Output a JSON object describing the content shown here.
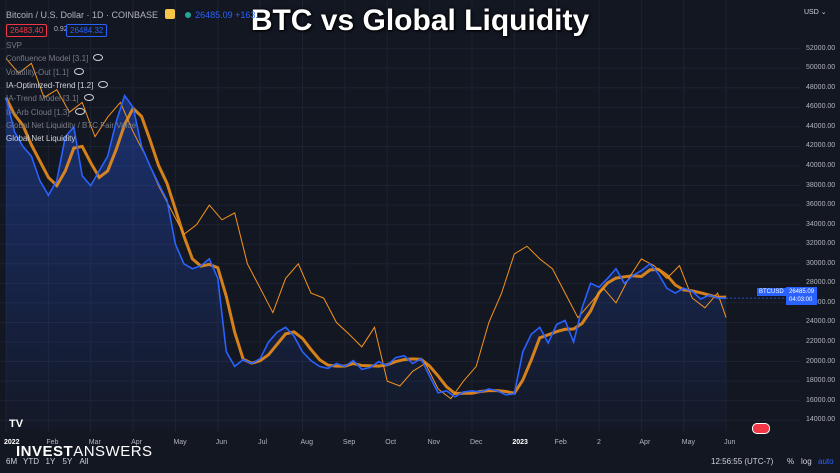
{
  "title": "BTC vs Global Liquidity",
  "symbol": {
    "name": "Bitcoin / U.S. Dollar · 1D · COINBASE",
    "live_price": "26485.09",
    "live_change": "+163.",
    "sell": "26483.40",
    "spread": "0.92",
    "buy": "26484.32"
  },
  "indicators": [
    {
      "label": "SVP",
      "bright": false
    },
    {
      "label": "Confluence Model [3.1]",
      "bright": false
    },
    {
      "label": "Volatility-Out [1.1]",
      "bright": false
    },
    {
      "label": "IA-Optimized-Trend [1.2]",
      "bright": true
    },
    {
      "label": "IA-Trend Model [3.1]",
      "bright": false
    },
    {
      "label": "IA-Arb Cloud [1.3]",
      "bright": false
    },
    {
      "label": "Global Net Liquidity / BTC Fair Value",
      "bright": false
    },
    {
      "label": "Global Net Liquidity",
      "bright": true
    }
  ],
  "currency": "USD",
  "price_tag": {
    "symbol": "BTCUSD",
    "price": "26485.09",
    "countdown": "04:03:00"
  },
  "branding": {
    "logo_bold": "INVEST",
    "logo_light": "ANSWERS",
    "tv": "TV"
  },
  "bottom_bar": {
    "ranges": [
      "6M",
      "YTD",
      "1Y",
      "5Y",
      "All"
    ],
    "time": "12:56:55 (UTC-7)",
    "pct": "%",
    "log": "log",
    "auto": "auto"
  },
  "chart_data": {
    "type": "line",
    "title": "BTC vs Global Liquidity",
    "xlabel": "",
    "ylabel": "",
    "x_ticks": [
      {
        "label": "2022",
        "m": 0,
        "bold": true
      },
      {
        "label": "Feb",
        "m": 1
      },
      {
        "label": "Mar",
        "m": 2
      },
      {
        "label": "Apr",
        "m": 3
      },
      {
        "label": "May",
        "m": 4
      },
      {
        "label": "Jun",
        "m": 5
      },
      {
        "label": "Jul",
        "m": 6
      },
      {
        "label": "Aug",
        "m": 7
      },
      {
        "label": "Sep",
        "m": 8
      },
      {
        "label": "Oct",
        "m": 9
      },
      {
        "label": "Nov",
        "m": 10
      },
      {
        "label": "Dec",
        "m": 11
      },
      {
        "label": "2023",
        "m": 12,
        "bold": true
      },
      {
        "label": "Feb",
        "m": 13
      },
      {
        "label": "2",
        "m": 14
      },
      {
        "label": "Apr",
        "m": 15
      },
      {
        "label": "May",
        "m": 16
      },
      {
        "label": "Jun",
        "m": 17
      }
    ],
    "y_ticks": [
      14000,
      16000,
      18000,
      20000,
      22000,
      24000,
      26000,
      28000,
      30000,
      32000,
      34000,
      36000,
      38000,
      40000,
      42000,
      44000,
      46000,
      48000,
      50000,
      52000
    ],
    "y_tick_labels": [
      "14000.00",
      "16000.00",
      "18000.00",
      "20000.00",
      "22000.00",
      "24000.00",
      "26000.00",
      "28000.00",
      "30000.00",
      "32000.00",
      "34000.00",
      "36000.00",
      "38000.00",
      "40000.00",
      "42000.00",
      "44000.00",
      "46000.00",
      "48000.00",
      "50000.00",
      "52000.00"
    ],
    "ylim": [
      13000,
      53500
    ],
    "xlim": [
      0,
      17.8
    ],
    "series": [
      {
        "name": "Bitcoin / U.S. Dollar",
        "color": "#2962ff",
        "x": [
          0,
          0.2,
          0.4,
          0.6,
          0.8,
          1.0,
          1.2,
          1.4,
          1.6,
          1.8,
          2.0,
          2.2,
          2.4,
          2.6,
          2.8,
          3.0,
          3.2,
          3.4,
          3.6,
          3.8,
          4.0,
          4.2,
          4.4,
          4.6,
          4.8,
          5.0,
          5.2,
          5.4,
          5.6,
          5.8,
          6.0,
          6.2,
          6.4,
          6.6,
          6.8,
          7.0,
          7.2,
          7.4,
          7.6,
          7.8,
          8.0,
          8.2,
          8.4,
          8.6,
          8.8,
          9.0,
          9.2,
          9.4,
          9.6,
          9.8,
          10.0,
          10.2,
          10.4,
          10.6,
          10.8,
          11.0,
          11.2,
          11.4,
          11.6,
          11.8,
          12.0,
          12.2,
          12.4,
          12.6,
          12.8,
          13.0,
          13.2,
          13.4,
          13.6,
          13.8,
          14.0,
          14.2,
          14.4,
          14.6,
          14.8,
          15.0,
          15.2,
          15.4,
          15.6,
          15.8,
          16.0,
          16.2,
          16.4,
          16.6,
          16.8,
          17.0
        ],
        "values": [
          47000,
          43500,
          42000,
          41000,
          38500,
          37000,
          38500,
          43000,
          44000,
          39000,
          38000,
          39500,
          41000,
          44500,
          47200,
          46000,
          42000,
          40000,
          38200,
          36500,
          32000,
          30000,
          29500,
          29800,
          30500,
          28500,
          21000,
          19500,
          20200,
          19800,
          20300,
          22000,
          23000,
          23500,
          22600,
          21000,
          20100,
          19500,
          19300,
          19800,
          19500,
          20100,
          19200,
          19400,
          20000,
          19600,
          20400,
          20600,
          19800,
          20300,
          18500,
          16800,
          17000,
          16400,
          16900,
          17000,
          16900,
          17200,
          17000,
          16600,
          16700,
          21000,
          22800,
          23500,
          21900,
          23800,
          24200,
          22000,
          25500,
          28000,
          27600,
          28500,
          29500,
          28000,
          28800,
          29300,
          30000,
          29000,
          27500,
          27000,
          27500,
          27200,
          26400,
          26800,
          26500,
          26485
        ]
      },
      {
        "name": "Global Net Liquidity",
        "color": "#f7931a",
        "x": [
          0,
          0.3,
          0.6,
          0.9,
          1.2,
          1.5,
          1.8,
          2.1,
          2.4,
          2.7,
          3.0,
          3.3,
          3.6,
          3.9,
          4.2,
          4.5,
          4.8,
          5.1,
          5.4,
          5.7,
          6.0,
          6.3,
          6.6,
          6.9,
          7.2,
          7.5,
          7.8,
          8.1,
          8.4,
          8.7,
          9.0,
          9.3,
          9.6,
          9.9,
          10.2,
          10.5,
          10.8,
          11.1,
          11.4,
          11.7,
          12.0,
          12.3,
          12.6,
          12.9,
          13.2,
          13.5,
          13.8,
          14.1,
          14.4,
          14.7,
          15.0,
          15.3,
          15.6,
          15.9,
          16.2,
          16.5,
          16.8,
          17.0
        ],
        "values": [
          51000,
          49500,
          50500,
          47000,
          47800,
          45500,
          46500,
          43000,
          45000,
          46500,
          43500,
          41000,
          38000,
          35500,
          33000,
          34000,
          36000,
          34500,
          35200,
          30000,
          27500,
          25000,
          28500,
          30000,
          27000,
          26500,
          24000,
          22800,
          21500,
          23500,
          18000,
          17500,
          19000,
          19800,
          17200,
          16200,
          18000,
          19500,
          24000,
          27000,
          31000,
          31800,
          30500,
          29500,
          27000,
          24500,
          26000,
          27500,
          26000,
          28500,
          30500,
          29800,
          28500,
          29800,
          26500,
          25500,
          27000,
          24500
        ]
      }
    ],
    "fill": {
      "from": "Bitcoin / U.S. Dollar",
      "to": "Global Net Liquidity",
      "color": "#f7931a"
    }
  }
}
